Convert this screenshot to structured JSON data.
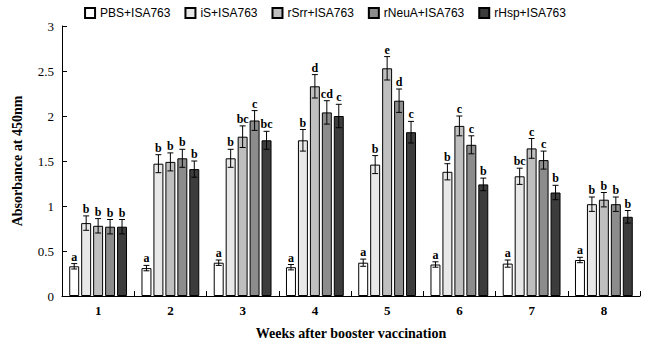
{
  "chart_data": {
    "type": "bar",
    "x_label": "Weeks after booster vaccination",
    "y_label": "Absorbance at 450nm",
    "categories": [
      "1",
      "2",
      "3",
      "4",
      "5",
      "6",
      "7",
      "8"
    ],
    "series": [
      {
        "name": "PBS+ISA763",
        "color": "#ffffff",
        "values": [
          0.33,
          0.31,
          0.37,
          0.32,
          0.37,
          0.35,
          0.36,
          0.4
        ],
        "errors": [
          0.03,
          0.03,
          0.03,
          0.03,
          0.04,
          0.03,
          0.04,
          0.03
        ],
        "letters": [
          "a",
          "a",
          "a",
          "a",
          "a",
          "a",
          "a",
          "a"
        ]
      },
      {
        "name": "iS+ISA763",
        "color": "#e8e8e8",
        "values": [
          0.81,
          1.47,
          1.53,
          1.73,
          1.46,
          1.38,
          1.33,
          1.02
        ],
        "errors": [
          0.08,
          0.1,
          0.1,
          0.12,
          0.1,
          0.09,
          0.09,
          0.08
        ],
        "letters": [
          "b",
          "b",
          "b",
          "b",
          "b",
          "b",
          "bc",
          "b"
        ]
      },
      {
        "name": "rSrr+ISA763",
        "color": "#bfbfbf",
        "values": [
          0.78,
          1.49,
          1.77,
          2.33,
          2.53,
          1.89,
          1.64,
          1.07
        ],
        "errors": [
          0.08,
          0.1,
          0.12,
          0.13,
          0.13,
          0.11,
          0.11,
          0.08
        ],
        "letters": [
          "b",
          "b",
          "bc",
          "d",
          "e",
          "c",
          "c",
          "b"
        ]
      },
      {
        "name": "rNeuA+ISA763",
        "color": "#8c8c8c",
        "values": [
          0.77,
          1.53,
          1.95,
          2.04,
          2.17,
          1.68,
          1.51,
          1.02
        ],
        "errors": [
          0.08,
          0.1,
          0.11,
          0.13,
          0.13,
          0.1,
          0.1,
          0.08
        ],
        "letters": [
          "b",
          "b",
          "c",
          "cd",
          "d",
          "c",
          "c",
          "b"
        ]
      },
      {
        "name": "rHsp+ISA763",
        "color": "#3c3c3c",
        "values": [
          0.77,
          1.41,
          1.73,
          2.0,
          1.82,
          1.24,
          1.15,
          0.88
        ],
        "errors": [
          0.08,
          0.09,
          0.1,
          0.13,
          0.12,
          0.07,
          0.08,
          0.07
        ],
        "letters": [
          "b",
          "b",
          "bc",
          "c",
          "c",
          "b",
          "b",
          "b"
        ]
      }
    ],
    "ylim": [
      0,
      3
    ],
    "yticks": [
      0,
      0.5,
      1,
      1.5,
      2,
      2.5,
      3
    ],
    "grid": false,
    "legend": "top"
  }
}
